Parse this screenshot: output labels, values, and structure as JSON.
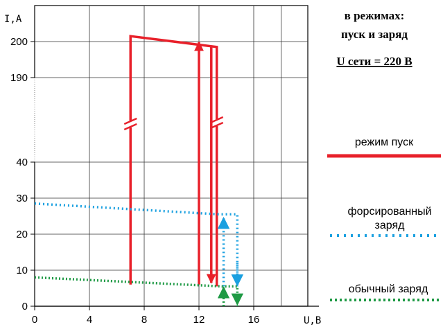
{
  "chart_data": {
    "type": "line",
    "title_lines": [
      "в режимах:",
      "пуск и заряд"
    ],
    "subtitle": "U сети = 220 В",
    "xlabel": "U,В",
    "ylabel": "I,А",
    "x_ticks": [
      "0",
      "4",
      "8",
      "12",
      "16"
    ],
    "y_ticks": [
      "0",
      "10",
      "20",
      "30",
      "40",
      "190",
      "200"
    ],
    "xlim": [
      0,
      19.5
    ],
    "y_axis_break": {
      "lower_range": [
        0,
        40
      ],
      "upper_range": [
        190,
        200
      ]
    },
    "grid": true,
    "legend_position": "right",
    "series": [
      {
        "name": "режим пуск",
        "color": "#e8202a",
        "style": "solid",
        "points": [
          [
            7,
            6
          ],
          [
            7,
            201.5
          ],
          [
            13.3,
            198.5
          ],
          [
            13.3,
            5.5
          ]
        ],
        "notes": "axis-break markers on vertical segments; arrows up at U=12 and down at U≈12.9"
      },
      {
        "name": "форсированный заряд",
        "color": "#1aa0e0",
        "style": "dotted",
        "points": [
          [
            0,
            28.5
          ],
          [
            13.5,
            25.5
          ],
          [
            14.8,
            25.5
          ],
          [
            14.8,
            5.5
          ]
        ],
        "notes": "return arrow up at U≈13.8"
      },
      {
        "name": "обычный заряд",
        "color": "#1f9a45",
        "style": "dotted",
        "points": [
          [
            0,
            8
          ],
          [
            13.7,
            5.5
          ],
          [
            14.8,
            5.5
          ],
          [
            14.8,
            0
          ]
        ],
        "notes": "return arrow up at U≈13.8"
      }
    ]
  }
}
